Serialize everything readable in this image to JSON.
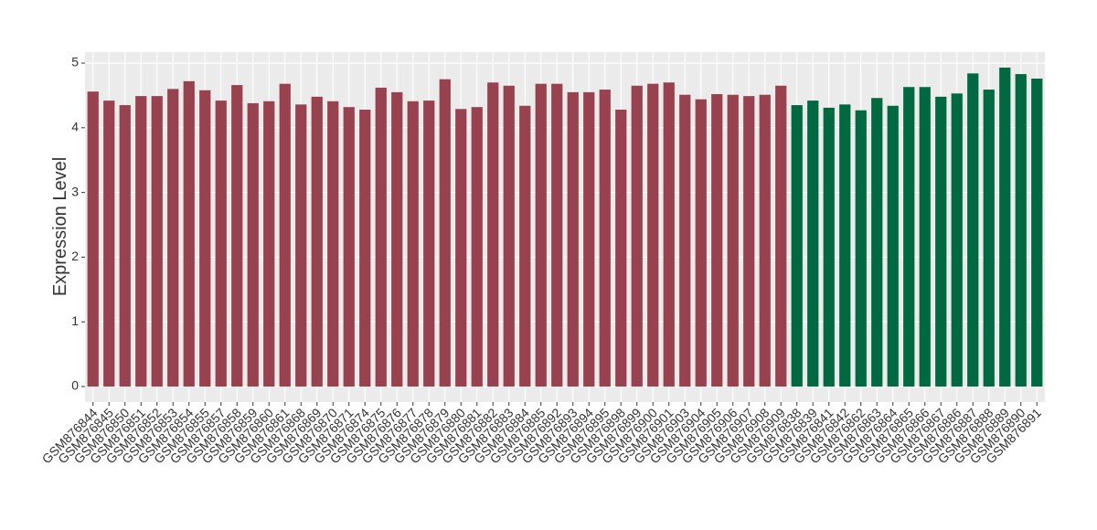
{
  "chart_data": {
    "type": "bar",
    "y_label": "Expression Level",
    "categories": [
      "GSM876844",
      "GSM876845",
      "GSM876850",
      "GSM876851",
      "GSM876852",
      "GSM876853",
      "GSM876854",
      "GSM876855",
      "GSM876857",
      "GSM876858",
      "GSM876859",
      "GSM876860",
      "GSM876861",
      "GSM876868",
      "GSM876869",
      "GSM876870",
      "GSM876871",
      "GSM876874",
      "GSM876875",
      "GSM876876",
      "GSM876877",
      "GSM876878",
      "GSM876879",
      "GSM876880",
      "GSM876881",
      "GSM876882",
      "GSM876883",
      "GSM876884",
      "GSM876885",
      "GSM876892",
      "GSM876893",
      "GSM876894",
      "GSM876895",
      "GSM876898",
      "GSM876899",
      "GSM876900",
      "GSM876901",
      "GSM876903",
      "GSM876904",
      "GSM876905",
      "GSM876906",
      "GSM876907",
      "GSM876908",
      "GSM876909",
      "GSM876838",
      "GSM876839",
      "GSM876841",
      "GSM876842",
      "GSM876862",
      "GSM876863",
      "GSM876864",
      "GSM876865",
      "GSM876866",
      "GSM876867",
      "GSM876886",
      "GSM876887",
      "GSM876888",
      "GSM876889",
      "GSM876890",
      "GSM876891"
    ],
    "values": [
      4.56,
      4.42,
      4.35,
      4.49,
      4.49,
      4.6,
      4.72,
      4.58,
      4.42,
      4.66,
      4.38,
      4.41,
      4.68,
      4.36,
      4.48,
      4.41,
      4.32,
      4.28,
      4.62,
      4.55,
      4.41,
      4.42,
      4.75,
      4.29,
      4.32,
      4.7,
      4.65,
      4.34,
      4.68,
      4.68,
      4.55,
      4.55,
      4.59,
      4.28,
      4.65,
      4.68,
      4.7,
      4.51,
      4.44,
      4.52,
      4.51,
      4.49,
      4.51,
      4.65,
      4.35,
      4.42,
      4.31,
      4.36,
      4.27,
      4.46,
      4.34,
      4.63,
      4.63,
      4.48,
      4.53,
      4.84,
      4.59,
      4.93,
      4.83,
      4.76
    ],
    "colors": [
      "#98414F",
      "#98414F",
      "#98414F",
      "#98414F",
      "#98414F",
      "#98414F",
      "#98414F",
      "#98414F",
      "#98414F",
      "#98414F",
      "#98414F",
      "#98414F",
      "#98414F",
      "#98414F",
      "#98414F",
      "#98414F",
      "#98414F",
      "#98414F",
      "#98414F",
      "#98414F",
      "#98414F",
      "#98414F",
      "#98414F",
      "#98414F",
      "#98414F",
      "#98414F",
      "#98414F",
      "#98414F",
      "#98414F",
      "#98414F",
      "#98414F",
      "#98414F",
      "#98414F",
      "#98414F",
      "#98414F",
      "#98414F",
      "#98414F",
      "#98414F",
      "#98414F",
      "#98414F",
      "#98414F",
      "#98414F",
      "#98414F",
      "#98414F",
      "#006942",
      "#006942",
      "#006942",
      "#006942",
      "#006942",
      "#006942",
      "#006942",
      "#006942",
      "#006942",
      "#006942",
      "#006942",
      "#006942",
      "#006942",
      "#006942",
      "#006942",
      "#006942"
    ],
    "ylim": [
      -0.24,
      5.17
    ],
    "yticks": [
      0,
      1,
      2,
      3,
      4,
      5
    ],
    "grid": true
  }
}
